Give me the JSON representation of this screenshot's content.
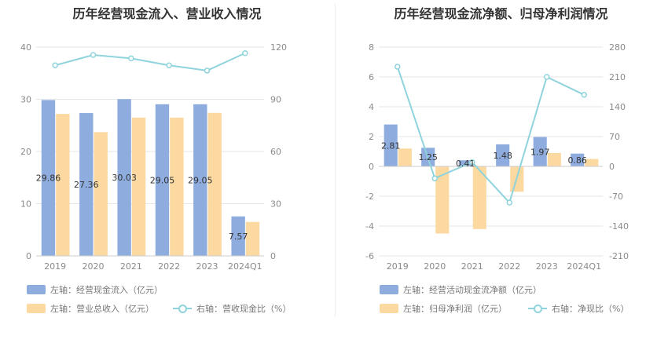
{
  "left": {
    "title": "历年经营现金流入、营业收入情况",
    "legend": {
      "bar1": "左轴：经营现金流入（亿元）",
      "bar2": "左轴：营业总收入（亿元）",
      "line": "右轴：营收现金比（%）"
    }
  },
  "right": {
    "title": "历年经营现金流净额、归母净利润情况",
    "legend": {
      "bar1": "左轴：经营活动现金流净额（亿元）",
      "bar2": "左轴：归母净利润（亿元）",
      "line": "右轴：净现比（%）"
    }
  },
  "colors": {
    "bar1": "#8eadde",
    "bar2": "#fcd9a0",
    "line": "#8fd3dc"
  },
  "chart_data": [
    {
      "type": "bar",
      "title": "历年经营现金流入、营业收入情况",
      "categories": [
        "2019",
        "2020",
        "2021",
        "2022",
        "2023",
        "2024Q1"
      ],
      "series": [
        {
          "name": "左轴：经营现金流入（亿元）",
          "axis": "left",
          "type": "bar",
          "values": [
            29.86,
            27.36,
            30.03,
            29.05,
            29.05,
            7.57
          ],
          "labels": [
            "29.86",
            "27.36",
            "30.03",
            "29.05",
            "29.05",
            "7.57"
          ]
        },
        {
          "name": "左轴：营业总收入（亿元）",
          "axis": "left",
          "type": "bar",
          "values": [
            27.2,
            23.7,
            26.5,
            26.5,
            27.4,
            6.5
          ]
        },
        {
          "name": "右轴：营收现金比（%）",
          "axis": "right",
          "type": "line",
          "values": [
            109.5,
            115.5,
            113.5,
            109.5,
            106.5,
            116.5
          ]
        }
      ],
      "y_left": {
        "min": 0,
        "max": 40,
        "ticks": [
          0,
          10,
          20,
          30,
          40
        ]
      },
      "y_right": {
        "min": 0,
        "max": 120,
        "ticks": [
          0,
          30,
          60,
          90,
          120
        ]
      },
      "grid": true,
      "legend_position": "bottom"
    },
    {
      "type": "bar",
      "title": "历年经营现金流净额、归母净利润情况",
      "categories": [
        "2019",
        "2020",
        "2021",
        "2022",
        "2023",
        "2024Q1"
      ],
      "series": [
        {
          "name": "左轴：经营活动现金流净额（亿元）",
          "axis": "left",
          "type": "bar",
          "values": [
            2.81,
            1.25,
            0.41,
            1.48,
            1.97,
            0.86
          ],
          "labels": [
            "2.81",
            "1.25",
            "0.41",
            "1.48",
            "1.97",
            "0.86"
          ]
        },
        {
          "name": "左轴：归母净利润（亿元）",
          "axis": "left",
          "type": "bar",
          "values": [
            1.2,
            -4.5,
            -4.2,
            -1.7,
            0.9,
            0.5
          ]
        },
        {
          "name": "右轴：净现比（%）",
          "axis": "right",
          "type": "line",
          "values": [
            234,
            -28,
            10,
            -85,
            210,
            168
          ]
        }
      ],
      "y_left": {
        "min": -6,
        "max": 8,
        "ticks": [
          -6,
          -4,
          -2,
          0,
          2,
          4,
          6,
          8
        ]
      },
      "y_right": {
        "min": -210,
        "max": 280,
        "ticks": [
          -210,
          -140,
          -70,
          0,
          70,
          140,
          210,
          280
        ]
      },
      "grid": true,
      "legend_position": "bottom"
    }
  ]
}
